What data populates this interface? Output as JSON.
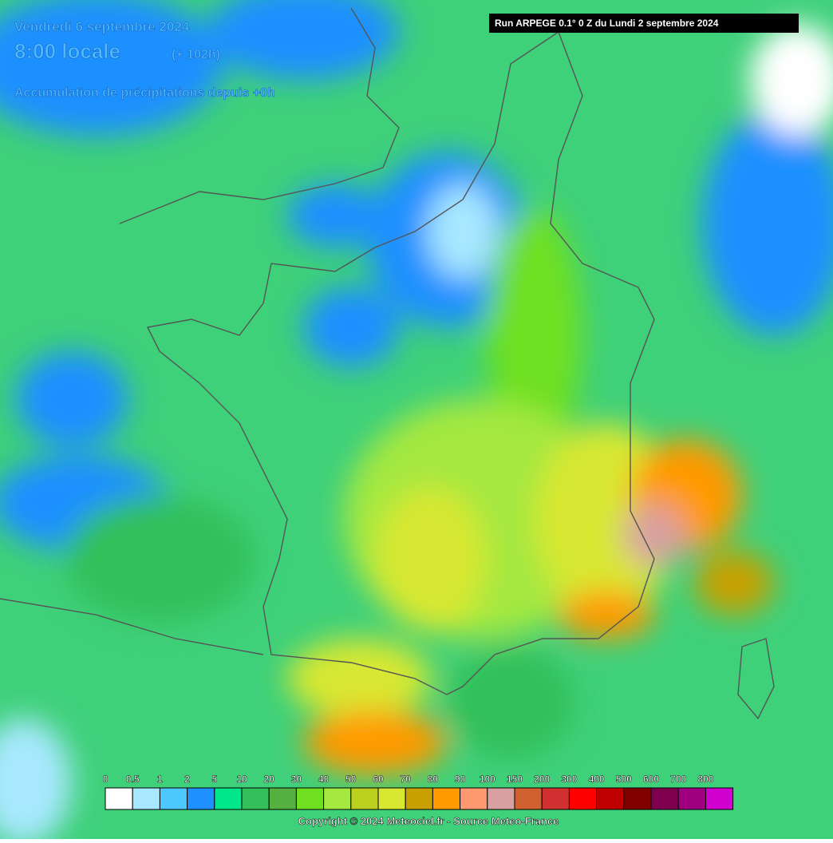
{
  "header": {
    "date": "Vendredi 6 septembre 2024",
    "time": "8:00 locale",
    "lead": "(+ 102h)",
    "product": "Accumulation de précipitations depuis +0h"
  },
  "run": "Run ARPEGE 0.1° 0 Z du Lundi 2 septembre 2024",
  "legend": {
    "labels": [
      0,
      0.5,
      1,
      2,
      5,
      10,
      20,
      30,
      40,
      50,
      60,
      70,
      80,
      90,
      100,
      150,
      200,
      300,
      400,
      500,
      600,
      700,
      800
    ],
    "colors": [
      "#ffffff",
      "#a8e8ff",
      "#4cc8ff",
      "#1e90ff",
      "#00e68a",
      "#33c05a",
      "#55b040",
      "#6ee020",
      "#a4e840",
      "#bcd020",
      "#d8e830",
      "#c8a000",
      "#ff9a00",
      "#ff9a70",
      "#d8a0a0",
      "#d06030",
      "#d03030",
      "#ff0000",
      "#c00000",
      "#800000",
      "#800050",
      "#a00080",
      "#d000d0"
    ]
  },
  "copyright": "Copyright © 2024 Meteociel.fr - Source Meteo-France"
}
